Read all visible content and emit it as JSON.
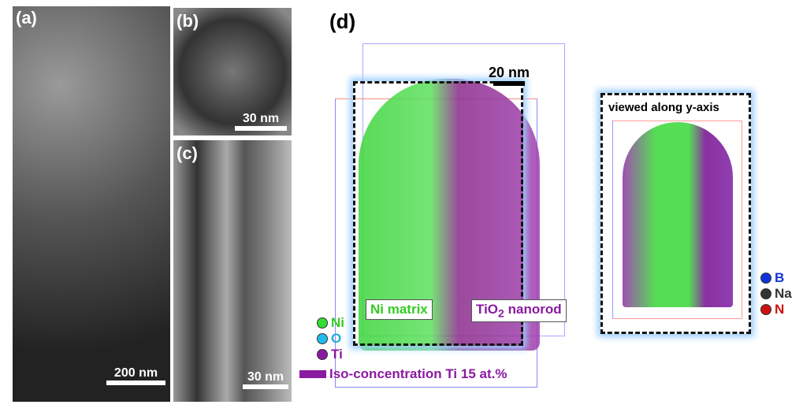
{
  "panels": {
    "a": {
      "label": "(a)",
      "scale": "200 nm"
    },
    "b": {
      "label": "(b)",
      "scale": "30 nm"
    },
    "c": {
      "label": "(c)",
      "scale": "30 nm"
    },
    "d": {
      "label": "(d)",
      "scale": "20 nm",
      "ni_tag": "Ni matrix",
      "tio2_tag_main": "TiO",
      "tio2_tag_sub": "2",
      "tio2_tag_rest": " nanorod",
      "inset_title": "viewed along y-axis"
    }
  },
  "legend_main": [
    {
      "label": "Ni",
      "color": "#33dd33"
    },
    {
      "label": "O",
      "color": "#22bbee"
    },
    {
      "label": "Ti",
      "color": "#8a1aa0"
    }
  ],
  "iso_label": "Iso-concentration Ti 15 at.%",
  "iso_color": "#8a1aa0",
  "legend_inset": [
    {
      "label": "B",
      "color": "#1133dd"
    },
    {
      "label": "Na",
      "color": "#333333"
    },
    {
      "label": "N",
      "color": "#cc1111"
    }
  ]
}
